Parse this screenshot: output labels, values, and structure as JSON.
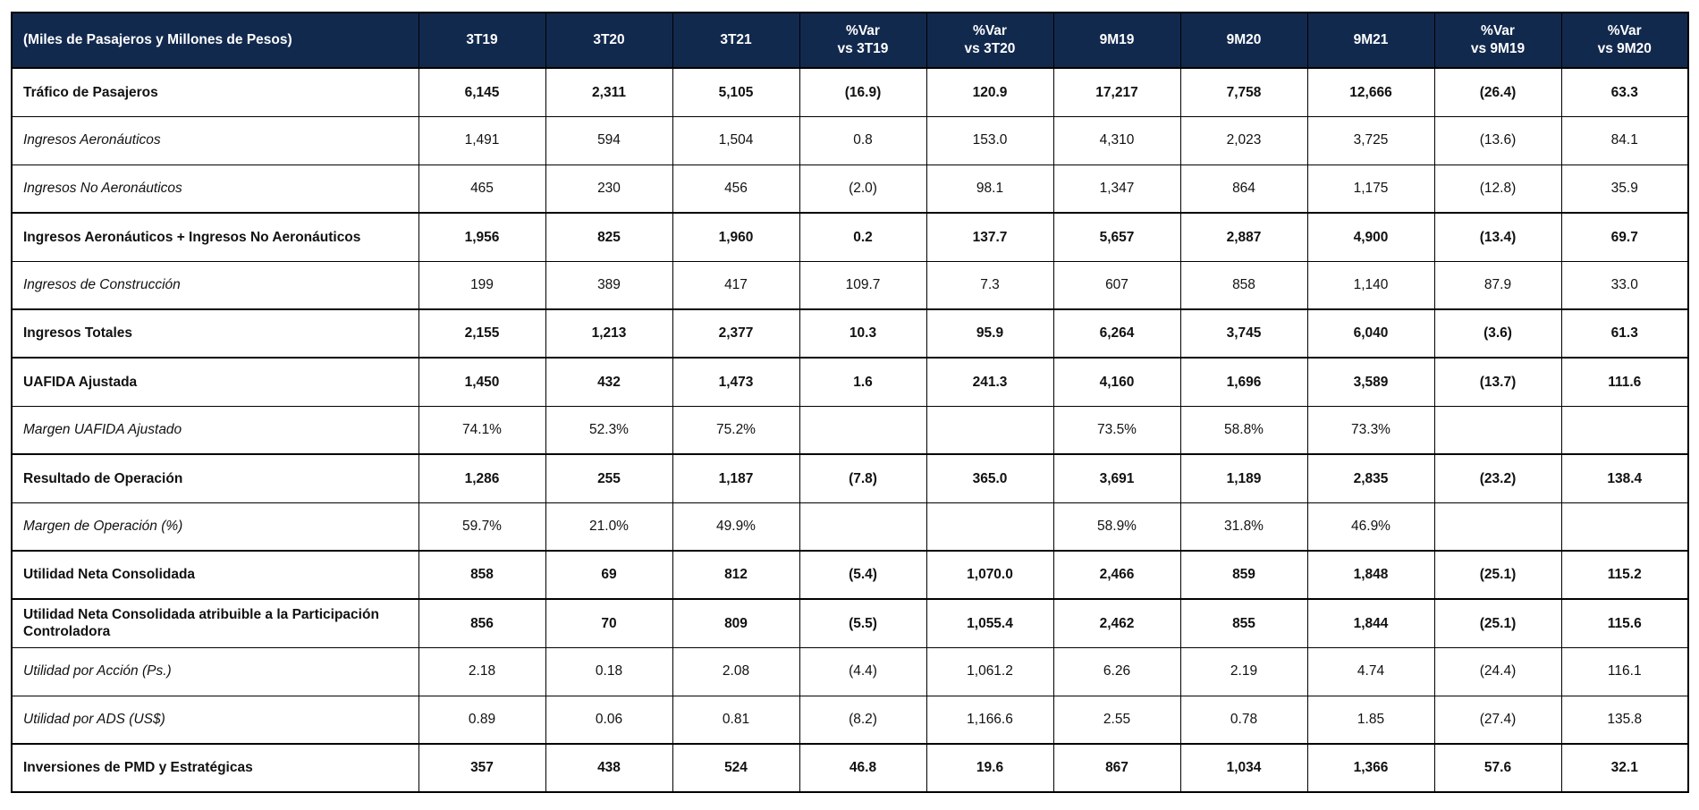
{
  "colors": {
    "header_bg": "#12294E",
    "header_text": "#FFFFFF",
    "border": "#000000",
    "row_bg": "#FFFFFF",
    "text": "#111111"
  },
  "table": {
    "header": {
      "label": "(Miles de Pasajeros y Millones de Pesos)",
      "columns": [
        "3T19",
        "3T20",
        "3T21",
        "%Var\nvs 3T19",
        "%Var\nvs 3T20",
        "9M19",
        "9M20",
        "9M21",
        "%Var\nvs 9M19",
        "%Var\nvs 9M20"
      ]
    },
    "rows": [
      {
        "label": "Tráfico de Pasajeros",
        "style": "section",
        "values": [
          "6,145",
          "2,311",
          "5,105",
          "(16.9)",
          "120.9",
          "17,217",
          "7,758",
          "12,666",
          "(26.4)",
          "63.3"
        ]
      },
      {
        "label": "Ingresos Aeronáuticos",
        "style": "detail",
        "values": [
          "1,491",
          "594",
          "1,504",
          "0.8",
          "153.0",
          "4,310",
          "2,023",
          "3,725",
          "(13.6)",
          "84.1"
        ]
      },
      {
        "label": "Ingresos No Aeronáuticos",
        "style": "detail",
        "values": [
          "465",
          "230",
          "456",
          "(2.0)",
          "98.1",
          "1,347",
          "864",
          "1,175",
          "(12.8)",
          "35.9"
        ]
      },
      {
        "label": "Ingresos Aeronáuticos + Ingresos No Aeronáuticos",
        "style": "section",
        "values": [
          "1,956",
          "825",
          "1,960",
          "0.2",
          "137.7",
          "5,657",
          "2,887",
          "4,900",
          "(13.4)",
          "69.7"
        ]
      },
      {
        "label": "Ingresos de Construcción",
        "style": "detail",
        "values": [
          "199",
          "389",
          "417",
          "109.7",
          "7.3",
          "607",
          "858",
          "1,140",
          "87.9",
          "33.0"
        ]
      },
      {
        "label": "Ingresos Totales",
        "style": "section",
        "values": [
          "2,155",
          "1,213",
          "2,377",
          "10.3",
          "95.9",
          "6,264",
          "3,745",
          "6,040",
          "(3.6)",
          "61.3"
        ]
      },
      {
        "label": "UAFIDA Ajustada",
        "style": "section",
        "values": [
          "1,450",
          "432",
          "1,473",
          "1.6",
          "241.3",
          "4,160",
          "1,696",
          "3,589",
          "(13.7)",
          "111.6"
        ]
      },
      {
        "label": "Margen UAFIDA Ajustado",
        "style": "detail",
        "values": [
          "74.1%",
          "52.3%",
          "75.2%",
          "",
          "",
          "73.5%",
          "58.8%",
          "73.3%",
          "",
          ""
        ]
      },
      {
        "label": "Resultado de Operación",
        "style": "section",
        "values": [
          "1,286",
          "255",
          "1,187",
          "(7.8)",
          "365.0",
          "3,691",
          "1,189",
          "2,835",
          "(23.2)",
          "138.4"
        ]
      },
      {
        "label": "Margen de Operación (%)",
        "style": "detail",
        "values": [
          "59.7%",
          "21.0%",
          "49.9%",
          "",
          "",
          "58.9%",
          "31.8%",
          "46.9%",
          "",
          ""
        ]
      },
      {
        "label": "Utilidad Neta Consolidada",
        "style": "section",
        "values": [
          "858",
          "69",
          "812",
          "(5.4)",
          "1,070.0",
          "2,466",
          "859",
          "1,848",
          "(25.1)",
          "115.2"
        ]
      },
      {
        "label": "Utilidad Neta Consolidada atribuible a la Participación Controladora",
        "style": "section",
        "values": [
          "856",
          "70",
          "809",
          "(5.5)",
          "1,055.4",
          "2,462",
          "855",
          "1,844",
          "(25.1)",
          "115.6"
        ]
      },
      {
        "label": "Utilidad por Acción (Ps.)",
        "style": "detail",
        "values": [
          "2.18",
          "0.18",
          "2.08",
          "(4.4)",
          "1,061.2",
          "6.26",
          "2.19",
          "4.74",
          "(24.4)",
          "116.1"
        ]
      },
      {
        "label": "Utilidad por ADS (US$)",
        "style": "detail",
        "values": [
          "0.89",
          "0.06",
          "0.81",
          "(8.2)",
          "1,166.6",
          "2.55",
          "0.78",
          "1.85",
          "(27.4)",
          "135.8"
        ]
      },
      {
        "label": "Inversiones de PMD y Estratégicas",
        "style": "section",
        "values": [
          "357",
          "438",
          "524",
          "46.8",
          "19.6",
          "867",
          "1,034",
          "1,366",
          "57.6",
          "32.1"
        ]
      }
    ]
  }
}
